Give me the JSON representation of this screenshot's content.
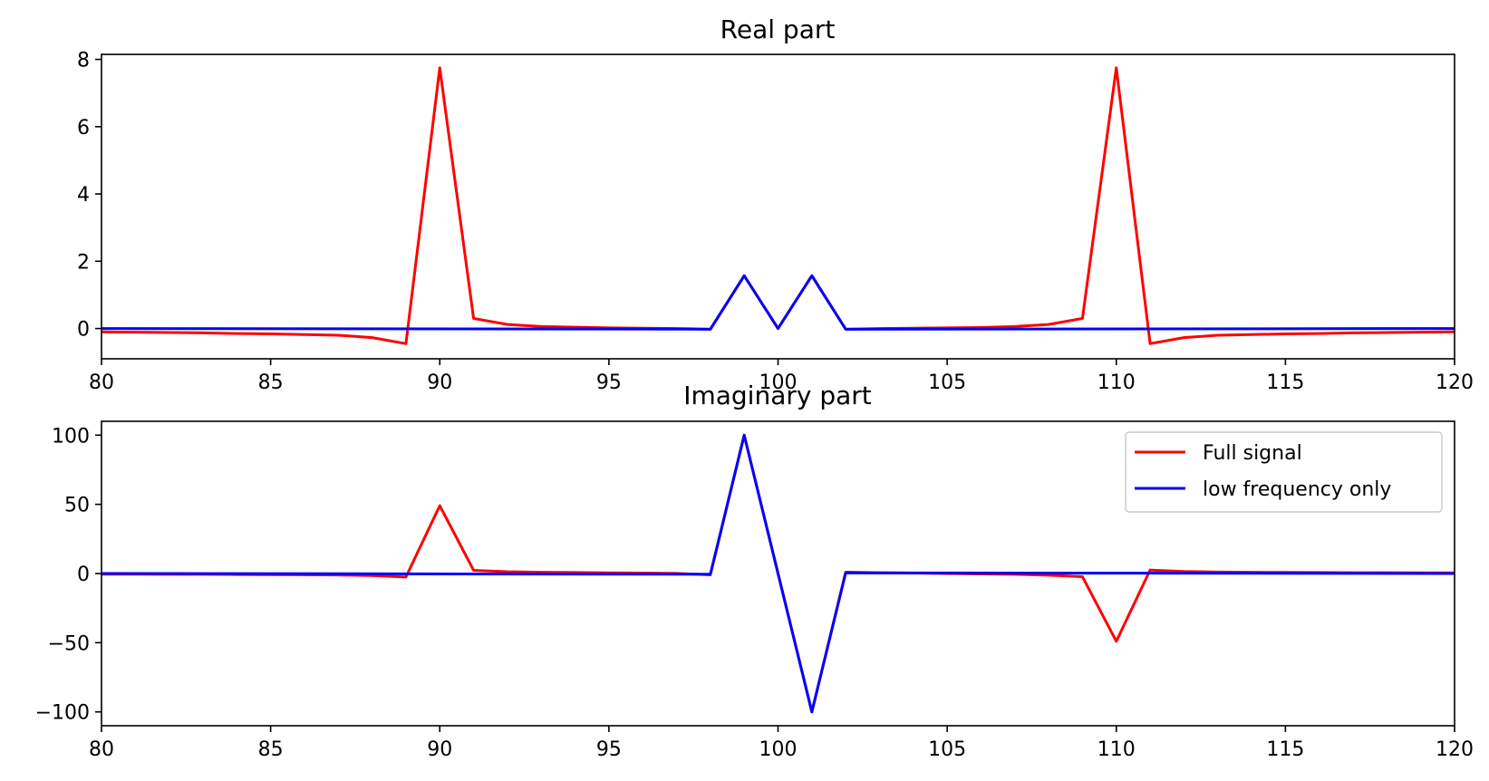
{
  "chart_data": [
    {
      "type": "line",
      "title": "Real part",
      "xlabel": "",
      "ylabel": "",
      "xlim": [
        80,
        120
      ],
      "ylim": [
        -0.9,
        8.15
      ],
      "xticks": [
        80,
        85,
        90,
        95,
        100,
        105,
        110,
        115,
        120
      ],
      "yticks": [
        0,
        2,
        4,
        6,
        8
      ],
      "ytick_labels": [
        "0",
        "2",
        "4",
        "6",
        "8"
      ],
      "grid": false,
      "series": [
        {
          "color": "#ff0000",
          "x": [
            80,
            81,
            82,
            83,
            84,
            85,
            86,
            87,
            88,
            89,
            90,
            91,
            92,
            93,
            94,
            95,
            96,
            97,
            98,
            99,
            100,
            101,
            102,
            103,
            104,
            105,
            106,
            107,
            108,
            109,
            110,
            111,
            112,
            113,
            114,
            115,
            116,
            117,
            118,
            119,
            120
          ],
          "y": [
            -0.1,
            -0.11,
            -0.12,
            -0.13,
            -0.15,
            -0.16,
            -0.18,
            -0.2,
            -0.27,
            -0.45,
            7.75,
            0.3,
            0.12,
            0.06,
            0.04,
            0.02,
            0.01,
            0.0,
            -0.02,
            1.57,
            0.0,
            1.57,
            -0.02,
            0.0,
            0.01,
            0.02,
            0.03,
            0.06,
            0.12,
            0.3,
            7.75,
            -0.45,
            -0.27,
            -0.2,
            -0.18,
            -0.16,
            -0.15,
            -0.13,
            -0.12,
            -0.11,
            -0.1
          ]
        },
        {
          "color": "#0000ff",
          "x": [
            80,
            98,
            99,
            100,
            101,
            102,
            120
          ],
          "y": [
            0.0,
            -0.02,
            1.57,
            0.0,
            1.57,
            -0.02,
            0.0
          ]
        }
      ]
    },
    {
      "type": "line",
      "title": "Imaginary part",
      "xlabel": "",
      "ylabel": "",
      "xlim": [
        80,
        120
      ],
      "ylim": [
        -110,
        110
      ],
      "xticks": [
        80,
        85,
        90,
        95,
        100,
        105,
        110,
        115,
        120
      ],
      "yticks": [
        100,
        50,
        0,
        -50,
        -100
      ],
      "ytick_labels": [
        "100",
        "50",
        "0",
        "−50",
        "−100"
      ],
      "grid": false,
      "legend": {
        "placement": "upper right",
        "entries": [
          {
            "label": "Full signal",
            "color": "#ff0000"
          },
          {
            "label": "low frequency only",
            "color": "#0000ff"
          }
        ]
      },
      "series": [
        {
          "name": "Full signal",
          "color": "#ff0000",
          "x": [
            80,
            81,
            82,
            83,
            84,
            85,
            86,
            87,
            88,
            89,
            90,
            91,
            92,
            93,
            94,
            95,
            96,
            97,
            98,
            99,
            100,
            101,
            102,
            103,
            104,
            105,
            106,
            107,
            108,
            109,
            110,
            111,
            112,
            113,
            114,
            115,
            116,
            117,
            118,
            119,
            120
          ],
          "y": [
            -0.5,
            -0.5,
            -0.6,
            -0.6,
            -0.7,
            -0.8,
            -0.9,
            -1.1,
            -1.5,
            -2.5,
            49,
            2.3,
            1.3,
            0.9,
            0.7,
            0.5,
            0.3,
            0.1,
            -1.0,
            100,
            0,
            -100,
            1.0,
            0.6,
            0.3,
            0.0,
            -0.3,
            -0.6,
            -1.2,
            -2.3,
            -49,
            2.5,
            1.5,
            1.1,
            0.9,
            0.8,
            0.7,
            0.6,
            0.6,
            0.5,
            0.5
          ]
        },
        {
          "name": "low frequency only",
          "color": "#0000ff",
          "x": [
            80,
            98,
            99,
            100,
            101,
            102,
            120
          ],
          "y": [
            0.0,
            -0.5,
            100,
            0,
            -100,
            0.5,
            0.0
          ]
        }
      ]
    }
  ]
}
